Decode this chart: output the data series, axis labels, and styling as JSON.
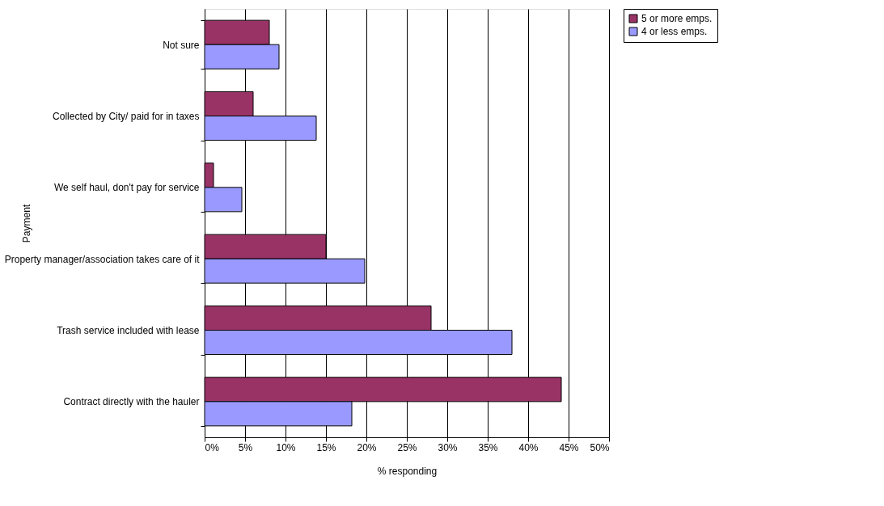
{
  "chart_data": {
    "type": "bar",
    "orientation": "horizontal",
    "xlabel": "% responding",
    "ylabel": "Payment",
    "categories": [
      "Not sure",
      "Collected by City/ paid for in taxes",
      "We self haul, don't pay for service",
      "Property manager/association takes care of it",
      "Trash service included with lease",
      "Contract directly with the hauler"
    ],
    "series": [
      {
        "name": "5 or more emps.",
        "color": "#993366",
        "values": [
          8.0,
          6.0,
          1.1,
          15.0,
          28.0,
          44.1
        ]
      },
      {
        "name": "4 or less emps.",
        "color": "#9999ff",
        "values": [
          9.2,
          13.8,
          4.6,
          19.8,
          38.0,
          18.2
        ]
      }
    ],
    "xlim": [
      0,
      50
    ],
    "xticks": [
      {
        "value": 0,
        "label": "0%"
      },
      {
        "value": 5,
        "label": "5%"
      },
      {
        "value": 10,
        "label": "10%"
      },
      {
        "value": 15,
        "label": "15%"
      },
      {
        "value": 20,
        "label": "20%"
      },
      {
        "value": 25,
        "label": "25%"
      },
      {
        "value": 30,
        "label": "30%"
      },
      {
        "value": 35,
        "label": "35%"
      },
      {
        "value": 40,
        "label": "40%"
      },
      {
        "value": 45,
        "label": "45%"
      },
      {
        "value": 50,
        "label": "50%"
      }
    ],
    "grid": "x",
    "legend": "right"
  }
}
